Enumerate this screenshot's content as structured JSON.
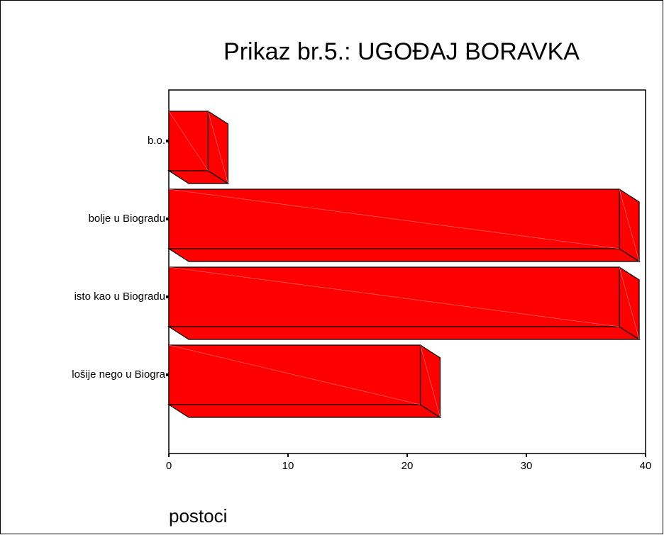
{
  "chart_data": {
    "type": "bar3d_horizontal",
    "title": "Prikaz br.5.: UGOĐAJ BORAVKA",
    "xlabel": "postoci",
    "categories": [
      "b.o.",
      "bolje u Biogradu",
      "isto kao u Biogradu",
      "lošije nego u Biogra"
    ],
    "values": [
      3.3,
      37.8,
      37.8,
      21.1
    ],
    "color": "#ff0000",
    "xlim": [
      0,
      40
    ],
    "xticks": [
      0,
      10,
      20,
      30,
      40
    ],
    "grid": false
  }
}
